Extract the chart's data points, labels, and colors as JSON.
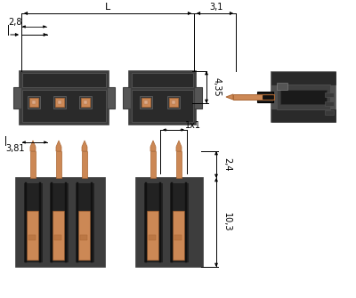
{
  "bg_color": "#ffffff",
  "line_color": "#000000",
  "dark_gray": "#3d3d3d",
  "medium_gray": "#555555",
  "inner_gray": "#2a2a2a",
  "slot_gray": "#222222",
  "copper_color": "#cc8855",
  "copper_dark": "#aa6633",
  "copper_mid": "#bb7744",
  "dim_28": "2,8",
  "dim_381": "3,81",
  "dim_L": "L",
  "dim_31": "3,1",
  "dim_435": "4,35",
  "dim_1x1": "1x1",
  "dim_24": "2,4",
  "dim_103": "10,3"
}
